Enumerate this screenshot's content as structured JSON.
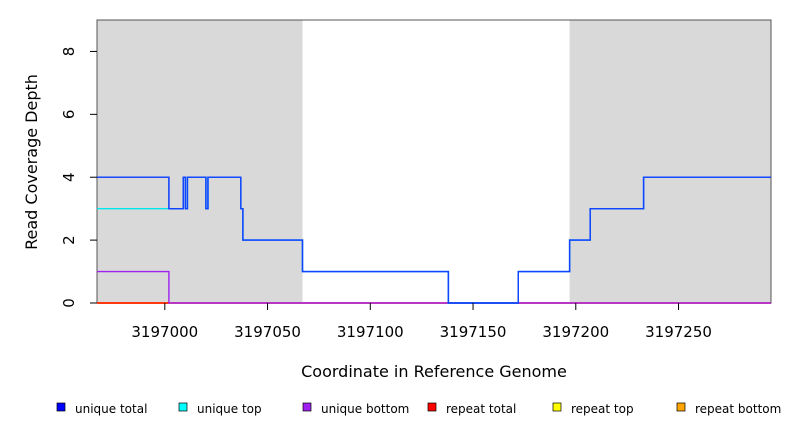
{
  "chart_data": {
    "type": "line",
    "title": "",
    "xlabel": "Coordinate in Reference Genome",
    "ylabel": "Read Coverage Depth",
    "xlim": [
      3196967,
      3197295
    ],
    "ylim": [
      0,
      9
    ],
    "x_ticks": [
      3197000,
      3197050,
      3197100,
      3197150,
      3197200,
      3197250
    ],
    "x_tick_labels": [
      "3197000",
      "3197050",
      "3197100",
      "3197150",
      "3197200",
      "3197250"
    ],
    "y_ticks": [
      0,
      2,
      4,
      6,
      8
    ],
    "y_tick_labels": [
      "0",
      "2",
      "4",
      "6",
      "8"
    ],
    "shaded_regions": [
      {
        "x0": 3196967,
        "x1": 3197067,
        "color": "#d9d9d9"
      },
      {
        "x0": 3197197,
        "x1": 3197295,
        "color": "#d9d9d9"
      }
    ],
    "grid": false,
    "legend_position": "bottom",
    "series": [
      {
        "name": "unique total",
        "color": "#0000ff",
        "x": [
          3196967,
          3197002,
          3197002,
          3197009,
          3197009,
          3197010,
          3197010,
          3197011,
          3197011,
          3197020,
          3197020,
          3197021,
          3197021,
          3197037,
          3197037,
          3197038,
          3197038,
          3197067,
          3197067,
          3197138,
          3197138,
          3197172,
          3197172,
          3197197,
          3197197,
          3197207,
          3197207,
          3197233,
          3197233,
          3197295
        ],
        "y": [
          4,
          4,
          3,
          3,
          4,
          4,
          3,
          3,
          4,
          4,
          3,
          3,
          4,
          4,
          3,
          3,
          2,
          2,
          1,
          1,
          0,
          0,
          1,
          1,
          2,
          2,
          3,
          3,
          4,
          4
        ]
      },
      {
        "name": "unique top",
        "color": "#00e5ee",
        "x": [
          3196967,
          3197002,
          3197002,
          3197009,
          3197009,
          3197010,
          3197010,
          3197011,
          3197011,
          3197020,
          3197020,
          3197021,
          3197021,
          3197037,
          3197037,
          3197038,
          3197038,
          3197067,
          3197067,
          3197138,
          3197138,
          3197172,
          3197172,
          3197197,
          3197197,
          3197207,
          3197207,
          3197233,
          3197233,
          3197295
        ],
        "y": [
          3,
          3,
          3,
          3,
          4,
          4,
          3,
          3,
          4,
          4,
          3,
          3,
          4,
          4,
          3,
          3,
          2,
          2,
          1,
          1,
          0,
          0,
          1,
          1,
          2,
          2,
          3,
          3,
          4,
          4
        ]
      },
      {
        "name": "unique bottom",
        "color": "#a020f0",
        "x": [
          3196967,
          3197002,
          3197002,
          3197295
        ],
        "y": [
          1,
          1,
          0,
          0
        ]
      },
      {
        "name": "repeat total",
        "color": "#ff0000",
        "x": [
          3196967,
          3197295
        ],
        "y": [
          0,
          0
        ]
      },
      {
        "name": "repeat top",
        "color": "#ffff00",
        "x": [
          3196967,
          3197295
        ],
        "y": [
          0,
          0
        ]
      },
      {
        "name": "repeat bottom",
        "color": "#ffa500",
        "x": [
          3196967,
          3197002
        ],
        "y": [
          0,
          0
        ]
      }
    ]
  },
  "legend": {
    "items": [
      {
        "label": "unique total",
        "color": "#0000ff"
      },
      {
        "label": "unique top",
        "color": "#00ffff"
      },
      {
        "label": "unique bottom",
        "color": "#a020f0"
      },
      {
        "label": "repeat total",
        "color": "#ff0000"
      },
      {
        "label": "repeat top",
        "color": "#ffff00"
      },
      {
        "label": "repeat bottom",
        "color": "#ffa500"
      }
    ]
  }
}
